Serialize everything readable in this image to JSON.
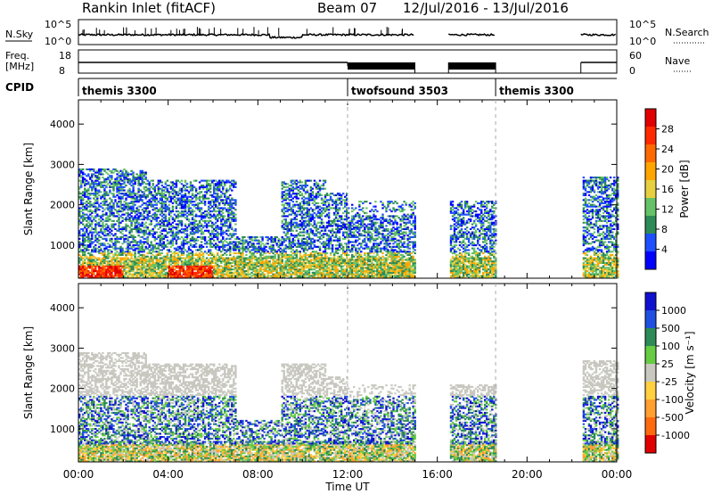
{
  "header": {
    "station": "Rankin Inlet (fitACF)",
    "beam": "Beam 07",
    "date_range": "12/Jul/2016 - 13/Jul/2016"
  },
  "summary": {
    "nsky_label": "N.Sky",
    "nsky_ticks": [
      "10^5",
      "10^0"
    ],
    "nsearch_label": "N.Search",
    "nsearch_ticks": [
      "10^5",
      "10^0"
    ],
    "freq_label": "Freq.",
    "freq_unit": "[MHz]",
    "freq_ticks": [
      "18",
      "8"
    ],
    "nave_label": "Nave",
    "nave_ticks": [
      "60",
      "0"
    ],
    "cpid_label": "CPID"
  },
  "cpid_segments": [
    {
      "name": "themis 3300",
      "start_hour": 0
    },
    {
      "name": "twofsound 3503",
      "start_hour": 12
    },
    {
      "name": "themis 3300",
      "start_hour": 18.6
    }
  ],
  "chart_data": [
    {
      "type": "heatmap",
      "name": "power",
      "xlabel": "Time UT",
      "ylabel": "Slant Range [km]",
      "xlim": [
        0,
        24
      ],
      "ylim": [
        180,
        4600
      ],
      "x_ticks": [
        "00:00",
        "04:00",
        "08:00",
        "12:00",
        "16:00",
        "20:00",
        "00:00"
      ],
      "y_ticks": [
        1000,
        2000,
        3000,
        4000
      ],
      "colorbar_label": "Power [dB]",
      "colorbar_ticks": [
        "4",
        "8",
        "12",
        "16",
        "20",
        "24",
        "28"
      ],
      "colors": [
        "#0000ff",
        "#1e50ff",
        "#2e8b57",
        "#66c266",
        "#e6d040",
        "#ffa500",
        "#ff6a00",
        "#ff2a00",
        "#e00000"
      ],
      "data_gaps_hours": [
        [
          15,
          16.5
        ],
        [
          18.6,
          22.4
        ]
      ]
    },
    {
      "type": "heatmap",
      "name": "velocity",
      "xlabel": "Time UT",
      "ylabel": "Slant Range [km]",
      "xlim": [
        0,
        24
      ],
      "ylim": [
        180,
        4600
      ],
      "x_ticks": [
        "00:00",
        "04:00",
        "08:00",
        "12:00",
        "16:00",
        "20:00",
        "00:00"
      ],
      "y_ticks": [
        1000,
        2000,
        3000,
        4000
      ],
      "colorbar_label": "Velocity [m s⁻¹]",
      "colorbar_ticks": [
        "1000",
        "500",
        "100",
        "25",
        "-25",
        "-100",
        "-500",
        "-1000"
      ],
      "colors": [
        "#1010d0",
        "#2050e0",
        "#2e8b57",
        "#66cc44",
        "#c8c8c0",
        "#ffd040",
        "#ffa030",
        "#ff6a10",
        "#e00000"
      ],
      "data_gaps_hours": [
        [
          15,
          16.5
        ],
        [
          18.6,
          22.4
        ]
      ]
    }
  ]
}
